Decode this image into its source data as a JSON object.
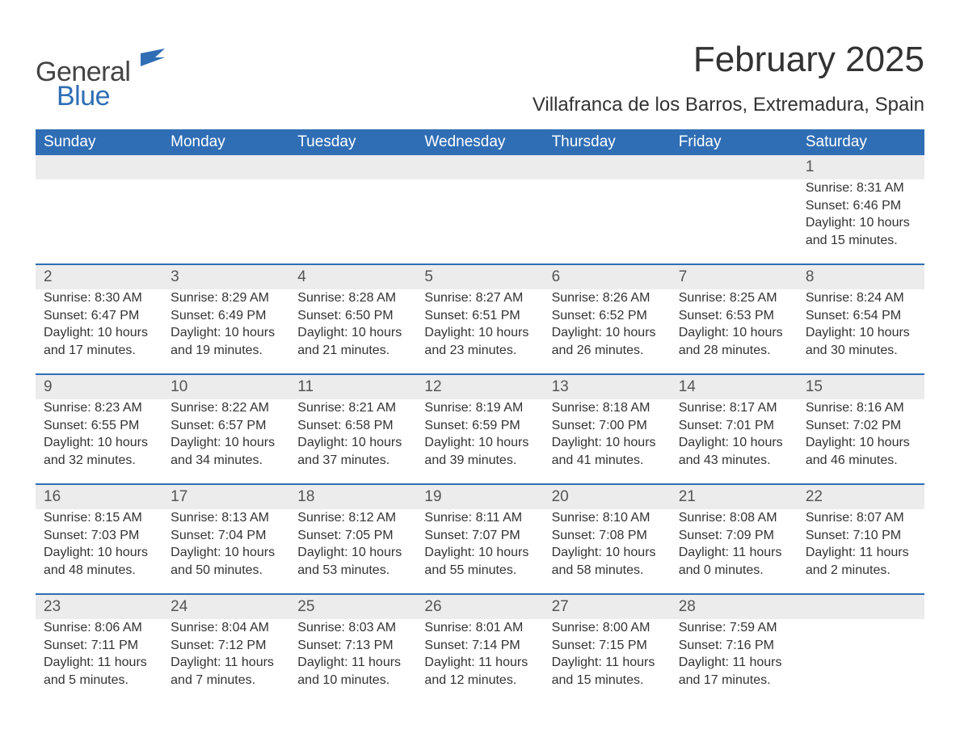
{
  "logo": {
    "word1": "General",
    "word2": "Blue"
  },
  "title": "February 2025",
  "location": "Villafranca de los Barros, Extremadura, Spain",
  "colors": {
    "header_bg": "#2f6eb5",
    "header_text": "#ffffff",
    "daynum_bg": "#ececec",
    "daynum_border": "#2f6eb5",
    "body_text": "#333333",
    "page_bg": "#ffffff"
  },
  "weekdays": [
    "Sunday",
    "Monday",
    "Tuesday",
    "Wednesday",
    "Thursday",
    "Friday",
    "Saturday"
  ],
  "weeks": [
    [
      null,
      null,
      null,
      null,
      null,
      null,
      {
        "n": "1",
        "sr": "Sunrise: 8:31 AM",
        "ss": "Sunset: 6:46 PM",
        "d1": "Daylight: 10 hours",
        "d2": "and 15 minutes."
      }
    ],
    [
      {
        "n": "2",
        "sr": "Sunrise: 8:30 AM",
        "ss": "Sunset: 6:47 PM",
        "d1": "Daylight: 10 hours",
        "d2": "and 17 minutes."
      },
      {
        "n": "3",
        "sr": "Sunrise: 8:29 AM",
        "ss": "Sunset: 6:49 PM",
        "d1": "Daylight: 10 hours",
        "d2": "and 19 minutes."
      },
      {
        "n": "4",
        "sr": "Sunrise: 8:28 AM",
        "ss": "Sunset: 6:50 PM",
        "d1": "Daylight: 10 hours",
        "d2": "and 21 minutes."
      },
      {
        "n": "5",
        "sr": "Sunrise: 8:27 AM",
        "ss": "Sunset: 6:51 PM",
        "d1": "Daylight: 10 hours",
        "d2": "and 23 minutes."
      },
      {
        "n": "6",
        "sr": "Sunrise: 8:26 AM",
        "ss": "Sunset: 6:52 PM",
        "d1": "Daylight: 10 hours",
        "d2": "and 26 minutes."
      },
      {
        "n": "7",
        "sr": "Sunrise: 8:25 AM",
        "ss": "Sunset: 6:53 PM",
        "d1": "Daylight: 10 hours",
        "d2": "and 28 minutes."
      },
      {
        "n": "8",
        "sr": "Sunrise: 8:24 AM",
        "ss": "Sunset: 6:54 PM",
        "d1": "Daylight: 10 hours",
        "d2": "and 30 minutes."
      }
    ],
    [
      {
        "n": "9",
        "sr": "Sunrise: 8:23 AM",
        "ss": "Sunset: 6:55 PM",
        "d1": "Daylight: 10 hours",
        "d2": "and 32 minutes."
      },
      {
        "n": "10",
        "sr": "Sunrise: 8:22 AM",
        "ss": "Sunset: 6:57 PM",
        "d1": "Daylight: 10 hours",
        "d2": "and 34 minutes."
      },
      {
        "n": "11",
        "sr": "Sunrise: 8:21 AM",
        "ss": "Sunset: 6:58 PM",
        "d1": "Daylight: 10 hours",
        "d2": "and 37 minutes."
      },
      {
        "n": "12",
        "sr": "Sunrise: 8:19 AM",
        "ss": "Sunset: 6:59 PM",
        "d1": "Daylight: 10 hours",
        "d2": "and 39 minutes."
      },
      {
        "n": "13",
        "sr": "Sunrise: 8:18 AM",
        "ss": "Sunset: 7:00 PM",
        "d1": "Daylight: 10 hours",
        "d2": "and 41 minutes."
      },
      {
        "n": "14",
        "sr": "Sunrise: 8:17 AM",
        "ss": "Sunset: 7:01 PM",
        "d1": "Daylight: 10 hours",
        "d2": "and 43 minutes."
      },
      {
        "n": "15",
        "sr": "Sunrise: 8:16 AM",
        "ss": "Sunset: 7:02 PM",
        "d1": "Daylight: 10 hours",
        "d2": "and 46 minutes."
      }
    ],
    [
      {
        "n": "16",
        "sr": "Sunrise: 8:15 AM",
        "ss": "Sunset: 7:03 PM",
        "d1": "Daylight: 10 hours",
        "d2": "and 48 minutes."
      },
      {
        "n": "17",
        "sr": "Sunrise: 8:13 AM",
        "ss": "Sunset: 7:04 PM",
        "d1": "Daylight: 10 hours",
        "d2": "and 50 minutes."
      },
      {
        "n": "18",
        "sr": "Sunrise: 8:12 AM",
        "ss": "Sunset: 7:05 PM",
        "d1": "Daylight: 10 hours",
        "d2": "and 53 minutes."
      },
      {
        "n": "19",
        "sr": "Sunrise: 8:11 AM",
        "ss": "Sunset: 7:07 PM",
        "d1": "Daylight: 10 hours",
        "d2": "and 55 minutes."
      },
      {
        "n": "20",
        "sr": "Sunrise: 8:10 AM",
        "ss": "Sunset: 7:08 PM",
        "d1": "Daylight: 10 hours",
        "d2": "and 58 minutes."
      },
      {
        "n": "21",
        "sr": "Sunrise: 8:08 AM",
        "ss": "Sunset: 7:09 PM",
        "d1": "Daylight: 11 hours",
        "d2": "and 0 minutes."
      },
      {
        "n": "22",
        "sr": "Sunrise: 8:07 AM",
        "ss": "Sunset: 7:10 PM",
        "d1": "Daylight: 11 hours",
        "d2": "and 2 minutes."
      }
    ],
    [
      {
        "n": "23",
        "sr": "Sunrise: 8:06 AM",
        "ss": "Sunset: 7:11 PM",
        "d1": "Daylight: 11 hours",
        "d2": "and 5 minutes."
      },
      {
        "n": "24",
        "sr": "Sunrise: 8:04 AM",
        "ss": "Sunset: 7:12 PM",
        "d1": "Daylight: 11 hours",
        "d2": "and 7 minutes."
      },
      {
        "n": "25",
        "sr": "Sunrise: 8:03 AM",
        "ss": "Sunset: 7:13 PM",
        "d1": "Daylight: 11 hours",
        "d2": "and 10 minutes."
      },
      {
        "n": "26",
        "sr": "Sunrise: 8:01 AM",
        "ss": "Sunset: 7:14 PM",
        "d1": "Daylight: 11 hours",
        "d2": "and 12 minutes."
      },
      {
        "n": "27",
        "sr": "Sunrise: 8:00 AM",
        "ss": "Sunset: 7:15 PM",
        "d1": "Daylight: 11 hours",
        "d2": "and 15 minutes."
      },
      {
        "n": "28",
        "sr": "Sunrise: 7:59 AM",
        "ss": "Sunset: 7:16 PM",
        "d1": "Daylight: 11 hours",
        "d2": "and 17 minutes."
      },
      null
    ]
  ]
}
